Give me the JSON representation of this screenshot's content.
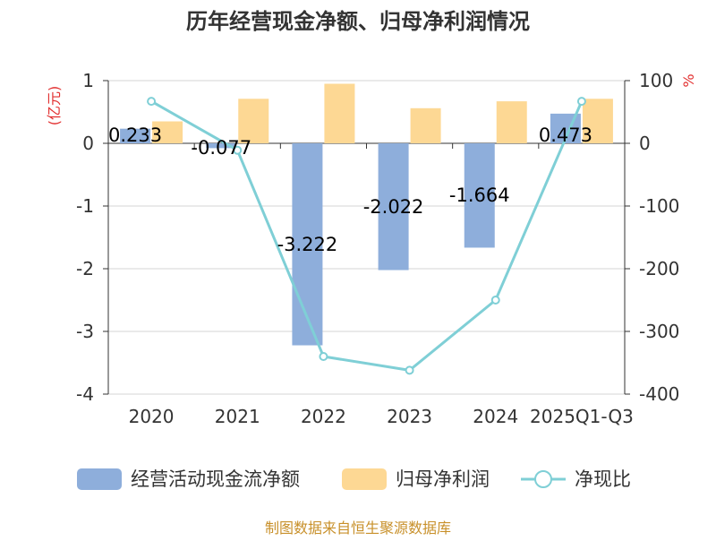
{
  "chart_data": {
    "type": "bar",
    "title": "历年经营现金净额、归母净利润情况",
    "categories": [
      "2020",
      "2021",
      "2022",
      "2023",
      "2024",
      "2025Q1-Q3"
    ],
    "left_axis": {
      "unit": "(亿元)",
      "ylim": [
        -4,
        1
      ],
      "ticks": [
        "1",
        "0",
        "-1",
        "-2",
        "-3",
        "-4"
      ],
      "tick_values": [
        1,
        0,
        -1,
        -2,
        -3,
        -4
      ]
    },
    "right_axis": {
      "unit": "%",
      "ylim": [
        -400,
        100
      ],
      "ticks": [
        "100",
        "0",
        "-100",
        "-200",
        "-300",
        "-400"
      ],
      "tick_values": [
        100,
        0,
        -100,
        -200,
        -300,
        -400
      ]
    },
    "series": [
      {
        "name": "经营活动现金流净额",
        "type": "bar",
        "axis": "left",
        "color": "#8eaedb",
        "values": [
          0.233,
          -0.077,
          -3.222,
          -2.022,
          -1.664,
          0.473
        ],
        "labels": [
          "0.233",
          "-0.077",
          "-3.222",
          "-2.022",
          "-1.664",
          "0.473"
        ]
      },
      {
        "name": "归母净利润",
        "type": "bar",
        "axis": "left",
        "color": "#fdd894",
        "values": [
          0.35,
          0.71,
          0.95,
          0.56,
          0.67,
          0.71
        ]
      },
      {
        "name": "净现比",
        "type": "line",
        "axis": "right",
        "color": "#7fcfd6",
        "values": [
          67,
          -11,
          -340,
          -362,
          -250,
          67
        ]
      }
    ],
    "grid": true,
    "legend_position": "bottom"
  },
  "footer": {
    "source": "制图数据来自恒生聚源数据库"
  }
}
